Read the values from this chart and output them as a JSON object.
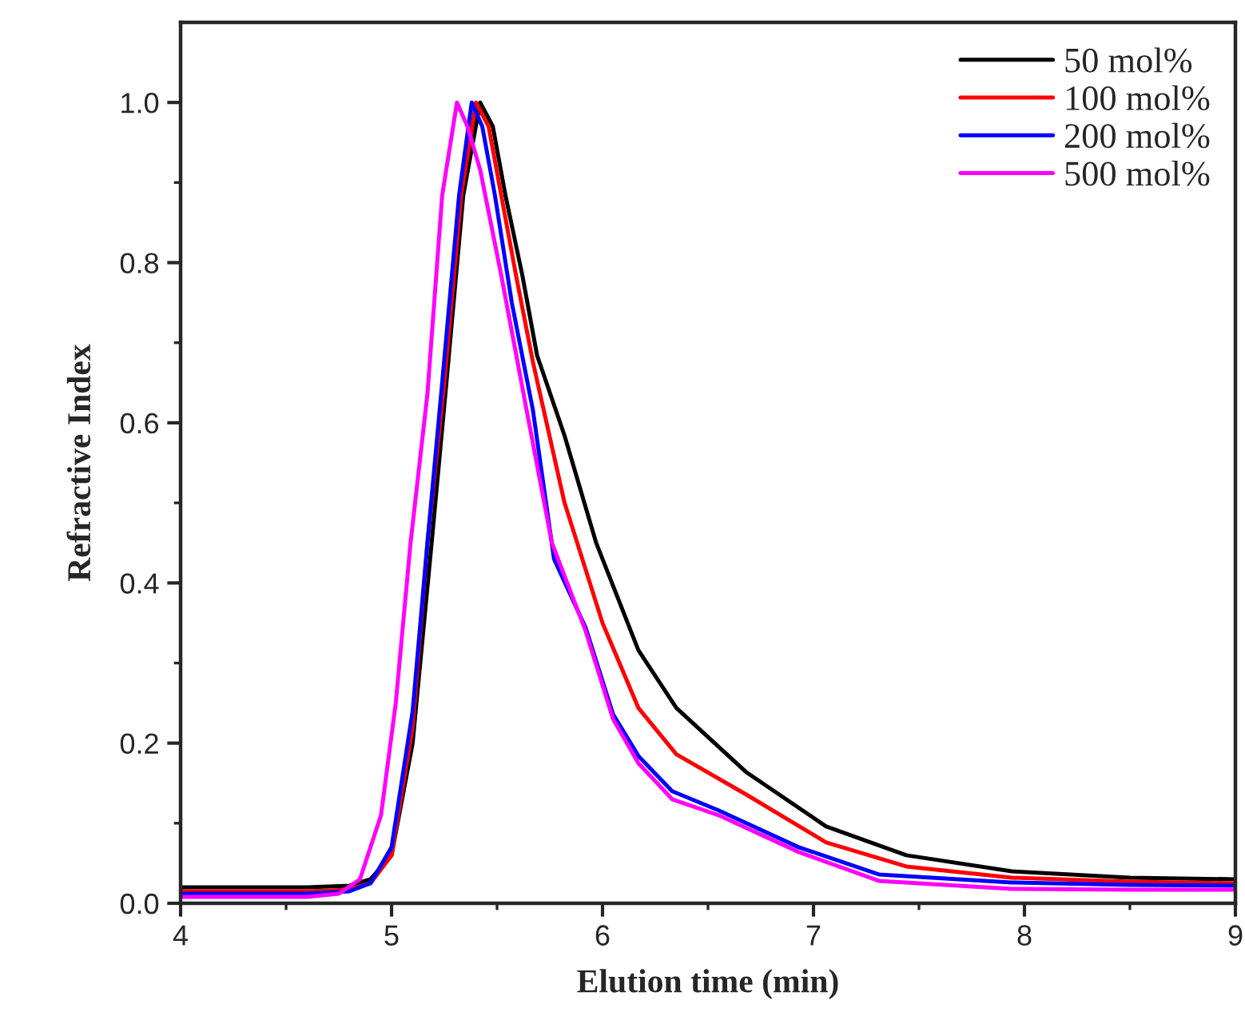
{
  "chart_data": {
    "type": "line",
    "xlabel": "Elution time (min)",
    "ylabel": "Refractive Index",
    "xlim": [
      4,
      9
    ],
    "ylim": [
      0,
      1.1
    ],
    "xticks": [
      4,
      5,
      6,
      7,
      8,
      9
    ],
    "yticks": [
      {
        "value": 0,
        "label": "0.0"
      },
      0.2,
      0.4,
      0.6,
      0.8,
      {
        "value": 1,
        "label": "1.0"
      }
    ],
    "grid": false,
    "legend": "top right",
    "marker": "none",
    "line_style": "solid",
    "series": [
      {
        "name": "50 mol%",
        "color": "#000000",
        "x": [
          4.0,
          4.6,
          4.8,
          4.9,
          5.0,
          5.1,
          5.19,
          5.26,
          5.34,
          5.42,
          5.48,
          5.54,
          5.62,
          5.69,
          5.82,
          5.97,
          6.17,
          6.35,
          6.68,
          7.06,
          7.44,
          7.94,
          8.5,
          9.0
        ],
        "values": [
          0.02,
          0.02,
          0.022,
          0.03,
          0.06,
          0.2,
          0.45,
          0.65,
          0.884,
          1.0,
          0.97,
          0.884,
          0.784,
          0.684,
          0.584,
          0.45,
          0.316,
          0.244,
          0.164,
          0.096,
          0.06,
          0.04,
          0.032,
          0.03
        ]
      },
      {
        "name": "100 mol%",
        "color": "#ff0000",
        "x": [
          4.0,
          4.6,
          4.8,
          4.9,
          5.0,
          5.1,
          5.17,
          5.25,
          5.33,
          5.4,
          5.46,
          5.52,
          5.59,
          5.67,
          5.82,
          6.0,
          6.17,
          6.35,
          6.68,
          7.06,
          7.44,
          7.94,
          8.5,
          9.0
        ],
        "values": [
          0.015,
          0.015,
          0.017,
          0.025,
          0.06,
          0.22,
          0.45,
          0.65,
          0.884,
          1.0,
          0.97,
          0.884,
          0.784,
          0.676,
          0.5,
          0.35,
          0.244,
          0.186,
          0.136,
          0.076,
          0.046,
          0.032,
          0.027,
          0.025
        ]
      },
      {
        "name": "200 mol%",
        "color": "#0000ff",
        "x": [
          4.0,
          4.6,
          4.8,
          4.9,
          5.0,
          5.1,
          5.17,
          5.24,
          5.32,
          5.38,
          5.43,
          5.49,
          5.57,
          5.67,
          5.77,
          5.92,
          6.05,
          6.17,
          6.33,
          6.55,
          6.93,
          7.31,
          7.94,
          8.5,
          9.0
        ],
        "values": [
          0.012,
          0.012,
          0.015,
          0.025,
          0.07,
          0.24,
          0.45,
          0.65,
          0.884,
          1.0,
          0.97,
          0.884,
          0.75,
          0.616,
          0.43,
          0.344,
          0.236,
          0.184,
          0.14,
          0.116,
          0.07,
          0.036,
          0.026,
          0.023,
          0.022
        ]
      },
      {
        "name": "500 mol%",
        "color": "#ff00ff",
        "x": [
          4.0,
          4.6,
          4.75,
          4.85,
          4.95,
          5.02,
          5.09,
          5.17,
          5.24,
          5.31,
          5.36,
          5.42,
          5.52,
          5.64,
          5.76,
          5.92,
          6.05,
          6.17,
          6.33,
          6.55,
          6.93,
          7.31,
          7.94,
          8.5,
          9.0
        ],
        "values": [
          0.008,
          0.008,
          0.012,
          0.03,
          0.11,
          0.25,
          0.45,
          0.636,
          0.884,
          1.0,
          0.97,
          0.916,
          0.784,
          0.616,
          0.45,
          0.34,
          0.23,
          0.175,
          0.13,
          0.11,
          0.064,
          0.028,
          0.018,
          0.017,
          0.017
        ]
      }
    ]
  }
}
